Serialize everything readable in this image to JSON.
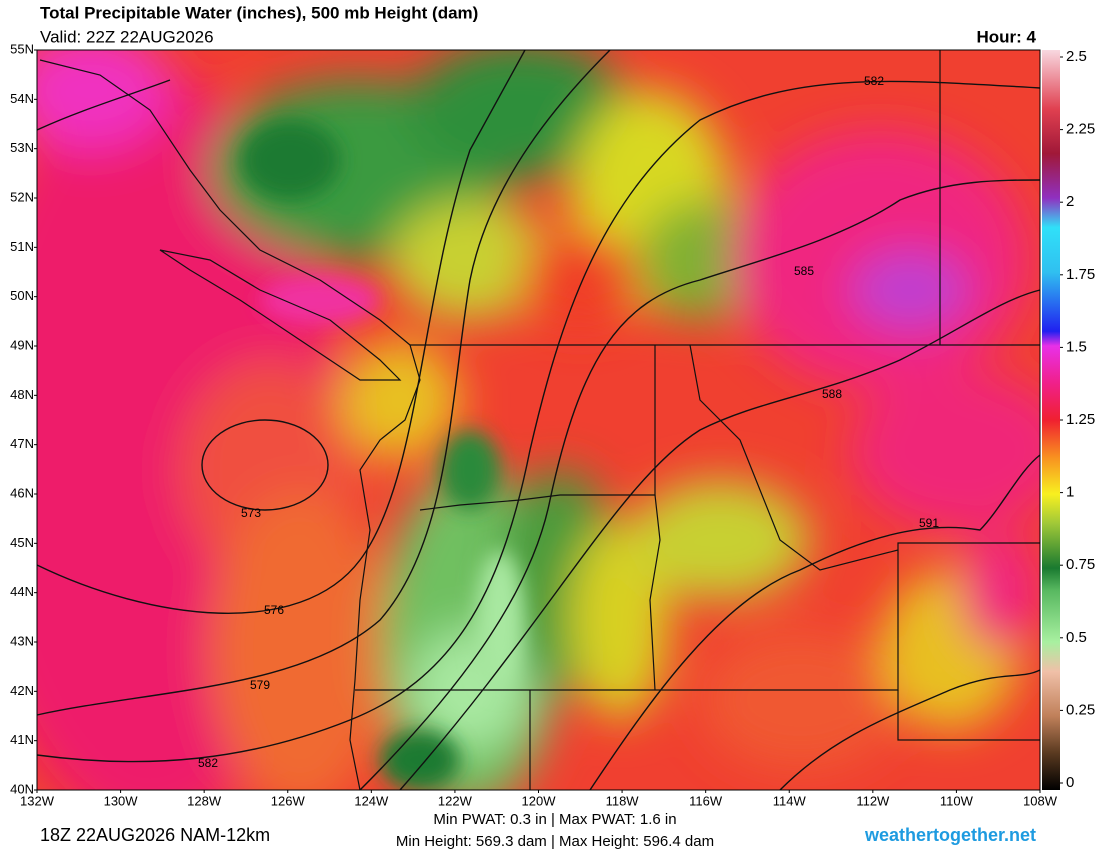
{
  "header": {
    "title": "Total Precipitable Water (inches), 500 mb Height (dam)",
    "valid": "Valid: 22Z 22AUG2026",
    "hour": "Hour: 4"
  },
  "map": {
    "lat_labels": [
      "55N",
      "54N",
      "53N",
      "52N",
      "51N",
      "50N",
      "49N",
      "48N",
      "47N",
      "46N",
      "45N",
      "44N",
      "43N",
      "42N",
      "41N",
      "40N"
    ],
    "lon_labels": [
      "132W",
      "130W",
      "128W",
      "126W",
      "124W",
      "122W",
      "120W",
      "118W",
      "116W",
      "114W",
      "112W",
      "110W",
      "108W"
    ],
    "contour_labels": [
      "573",
      "576",
      "579",
      "582",
      "582",
      "585",
      "588",
      "591"
    ]
  },
  "colorbar": {
    "lim": [
      0,
      2.5
    ],
    "ticks": [
      2.5,
      2.25,
      2,
      1.75,
      1.5,
      1.25,
      1,
      0.75,
      0.5,
      0.25,
      0
    ]
  },
  "footer": {
    "run": "18Z 22AUG2026 NAM-12km",
    "pwat": "Min PWAT:   0.3 in | Max PWAT:   1.6 in",
    "height": "Min Height: 569.3 dam | Max Height: 596.4 dam",
    "site": "weathertogether.net"
  }
}
